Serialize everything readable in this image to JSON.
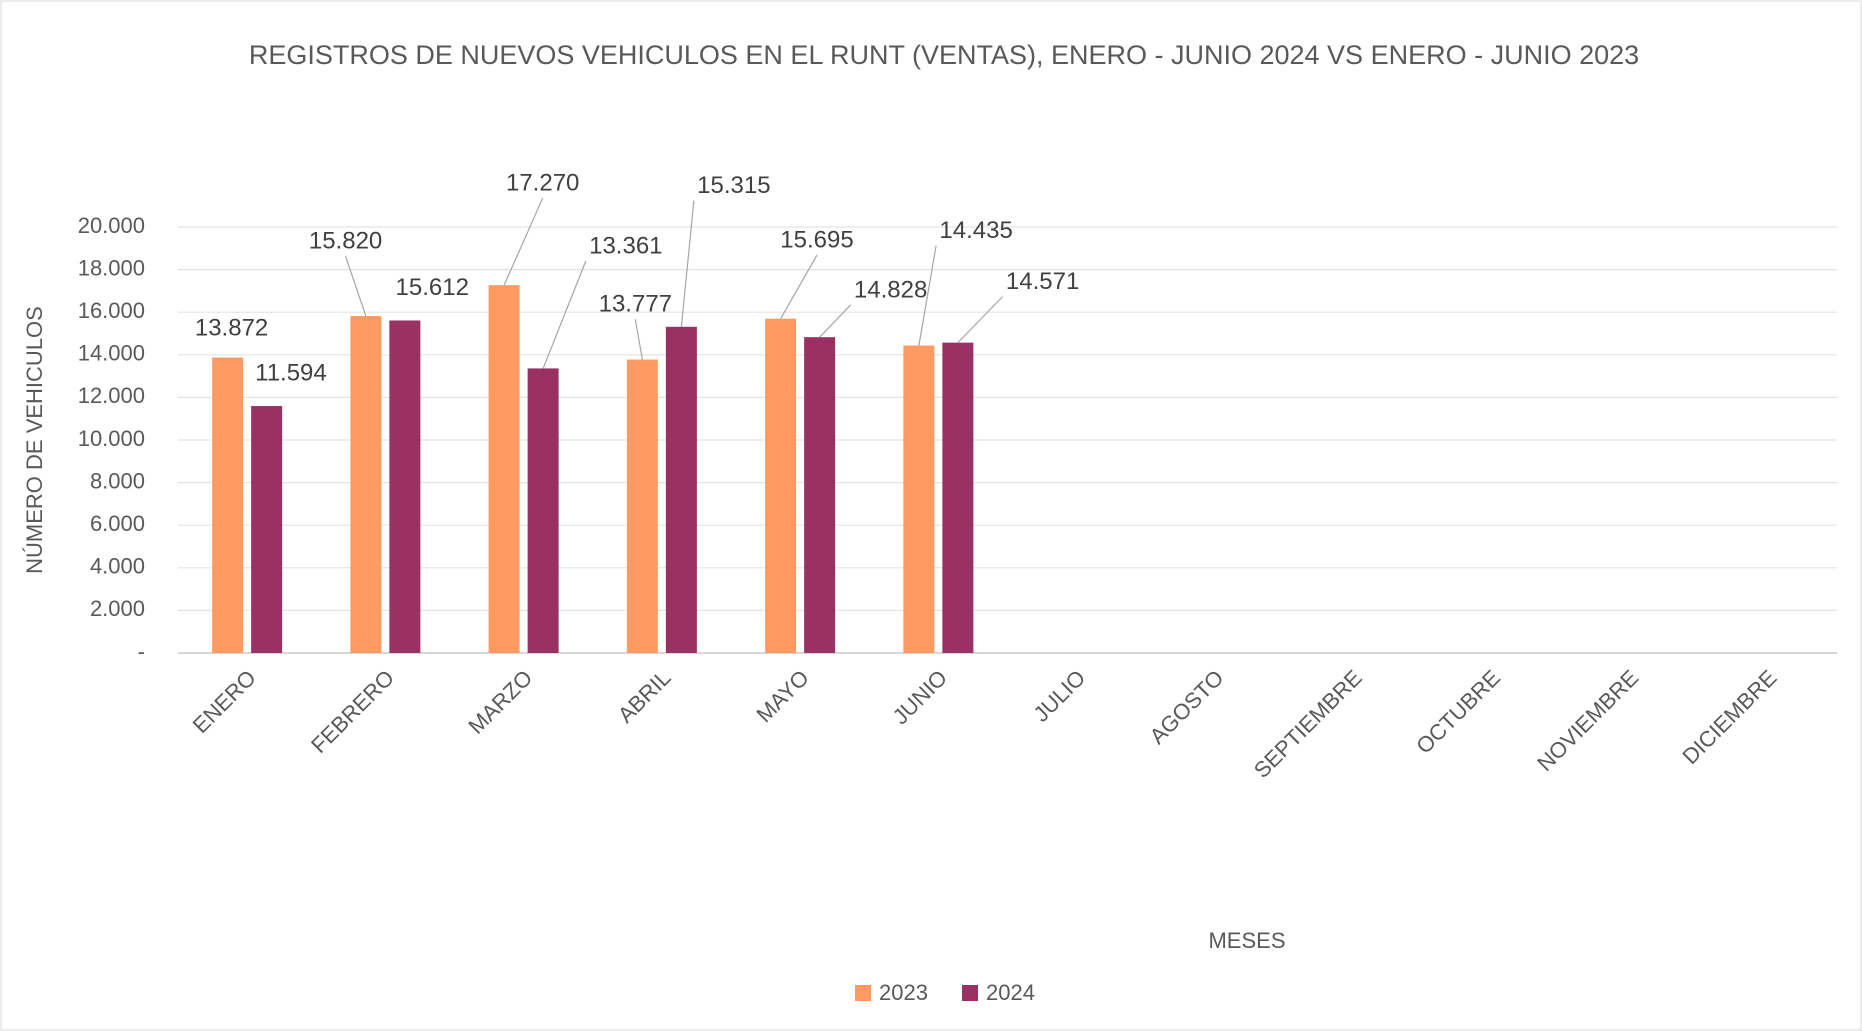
{
  "chart_data": {
    "type": "bar",
    "title": "REGISTROS DE NUEVOS VEHICULOS EN EL RUNT (VENTAS), ENERO - JUNIO  2024 VS ENERO - JUNIO 2023",
    "x_label": "MESES",
    "y_label": "NÚMERO DE VEHICULOS",
    "categories": [
      "ENERO",
      "FEBRERO",
      "MARZO",
      "ABRIL",
      "MAYO",
      "JUNIO",
      "JULIO",
      "AGOSTO",
      "SEPTIEMBRE",
      "OCTUBRE",
      "NOVIEMBRE",
      "DICIEMBRE"
    ],
    "series": [
      {
        "name": "2023",
        "color": "#ff9b62",
        "values": [
          13872,
          15820,
          17270,
          13777,
          15695,
          14435,
          null,
          null,
          null,
          null,
          null,
          null
        ],
        "value_labels": [
          "13.872",
          "15.820",
          "17.270",
          "13.777",
          "15.695",
          "14.435",
          null,
          null,
          null,
          null,
          null,
          null
        ]
      },
      {
        "name": "2024",
        "color": "#993262",
        "values": [
          11594,
          15612,
          13361,
          15315,
          14828,
          14571,
          null,
          null,
          null,
          null,
          null,
          null
        ],
        "value_labels": [
          "11.594",
          "15.612",
          "13.361",
          "15.315",
          "14.828",
          "14.571",
          null,
          null,
          null,
          null,
          null,
          null
        ]
      }
    ],
    "ylim": [
      0,
      20000
    ],
    "yticks": [
      {
        "value": 0,
        "label": "-"
      },
      {
        "value": 2000,
        "label": "2.000"
      },
      {
        "value": 4000,
        "label": "4.000"
      },
      {
        "value": 6000,
        "label": "6.000"
      },
      {
        "value": 8000,
        "label": "8.000"
      },
      {
        "value": 10000,
        "label": "10.000"
      },
      {
        "value": 12000,
        "label": "12.000"
      },
      {
        "value": 14000,
        "label": "14.000"
      },
      {
        "value": 16000,
        "label": "16.000"
      },
      {
        "value": 18000,
        "label": "18.000"
      },
      {
        "value": 20000,
        "label": "20.000"
      }
    ],
    "grid": true,
    "legend": "bottom"
  }
}
